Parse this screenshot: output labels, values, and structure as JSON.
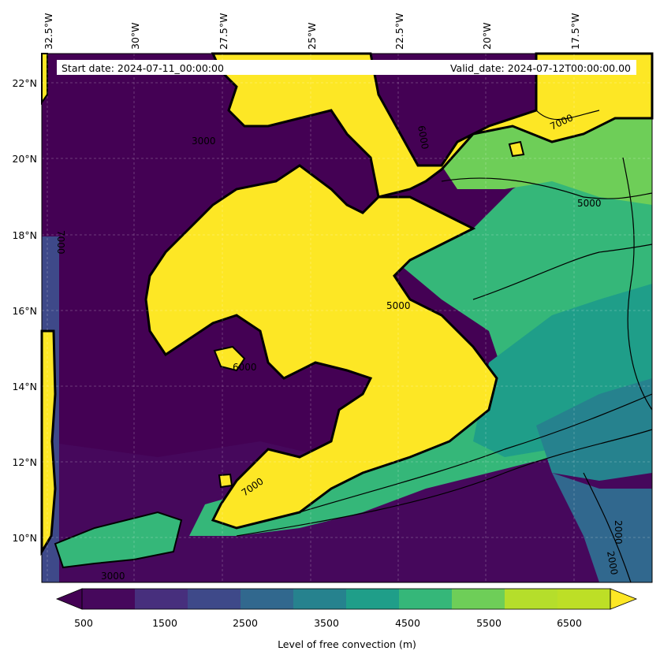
{
  "header": {
    "start_date": "Start date: 2024-07-11_00:00:00",
    "valid_date": "Valid_date: 2024-07-12T00:00:00.00"
  },
  "axes": {
    "lon_labels": [
      "32.5°W",
      "30°W",
      "27.5°W",
      "25°W",
      "22.5°W",
      "20°W",
      "17.5°W"
    ],
    "lat_labels": [
      "22°N",
      "20°N",
      "18°N",
      "16°N",
      "14°N",
      "12°N",
      "10°N"
    ]
  },
  "contour_labels": [
    "3000",
    "7000",
    "5000",
    "6000",
    "7000",
    "5000",
    "6000",
    "3000",
    "7000",
    "2000",
    "2000"
  ],
  "colorbar": {
    "label": "Level of free convection (m)",
    "ticks": [
      "500",
      "1500",
      "2500",
      "3500",
      "4500",
      "5500",
      "6500"
    ],
    "colors": [
      "#440154",
      "#46085c",
      "#472f7d",
      "#3e4989",
      "#31688e",
      "#26828e",
      "#1f9e89",
      "#35b779",
      "#6ece58",
      "#b5de2b",
      "#bddf26",
      "#fde725"
    ]
  },
  "field_colors": {
    "low": "#440154",
    "low2": "#46085c",
    "mid1": "#3e4989",
    "mid2": "#31688e",
    "mid3": "#26828e",
    "mid4": "#1f9e89",
    "mid5": "#35b779",
    "mid6": "#6ece58",
    "high": "#fde725"
  }
}
